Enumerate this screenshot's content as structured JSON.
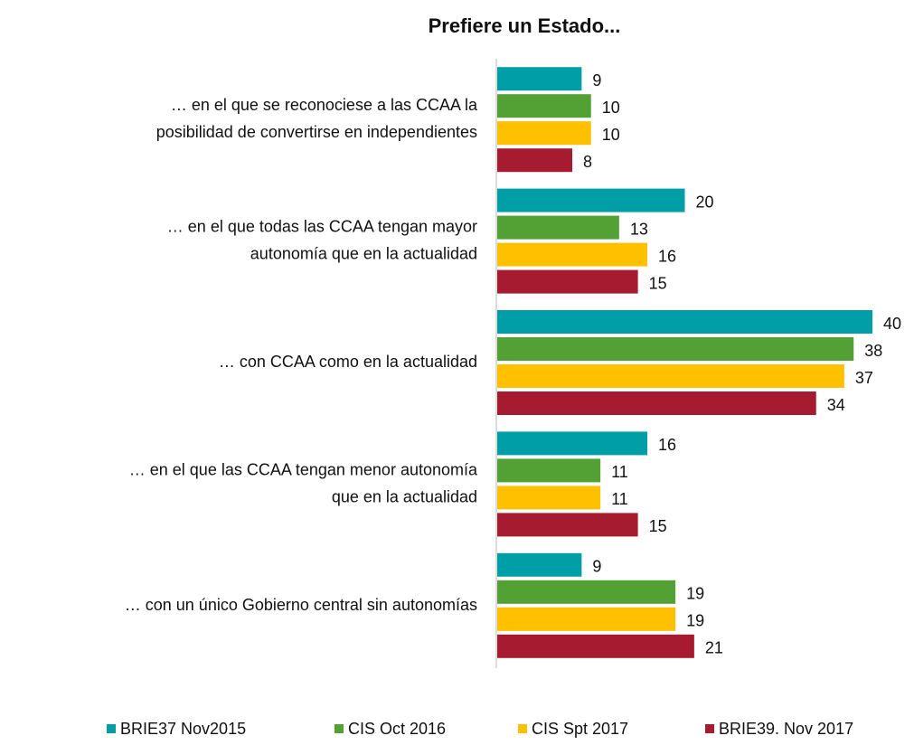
{
  "chart_data": {
    "type": "hbar",
    "title": "Prefiere un Estado...",
    "categories": [
      "… en el que se reconociese a las CCAA la\nposibilidad de convertirse en independientes",
      "… en el que todas las CCAA tengan mayor\nautonomía que en la actualidad",
      "… con CCAA como en la actualidad",
      "… en el que las CCAA tengan menor autonomía\nque en la actualidad",
      "… con un único Gobierno central sin autonomías"
    ],
    "series": [
      {
        "name": "BRIE37 Nov2015",
        "color": "#009fa8",
        "values": [
          9,
          20,
          40,
          16,
          9
        ]
      },
      {
        "name": "CIS Oct 2016",
        "color": "#53a035",
        "values": [
          10,
          13,
          38,
          11,
          19
        ]
      },
      {
        "name": "CIS Spt 2017",
        "color": "#ffc000",
        "values": [
          10,
          16,
          37,
          11,
          19
        ]
      },
      {
        "name": "BRIE39. Nov 2017",
        "color": "#a61b30",
        "values": [
          8,
          15,
          34,
          15,
          21
        ]
      }
    ],
    "xlim": [
      0,
      40
    ],
    "legend": "bottom"
  }
}
